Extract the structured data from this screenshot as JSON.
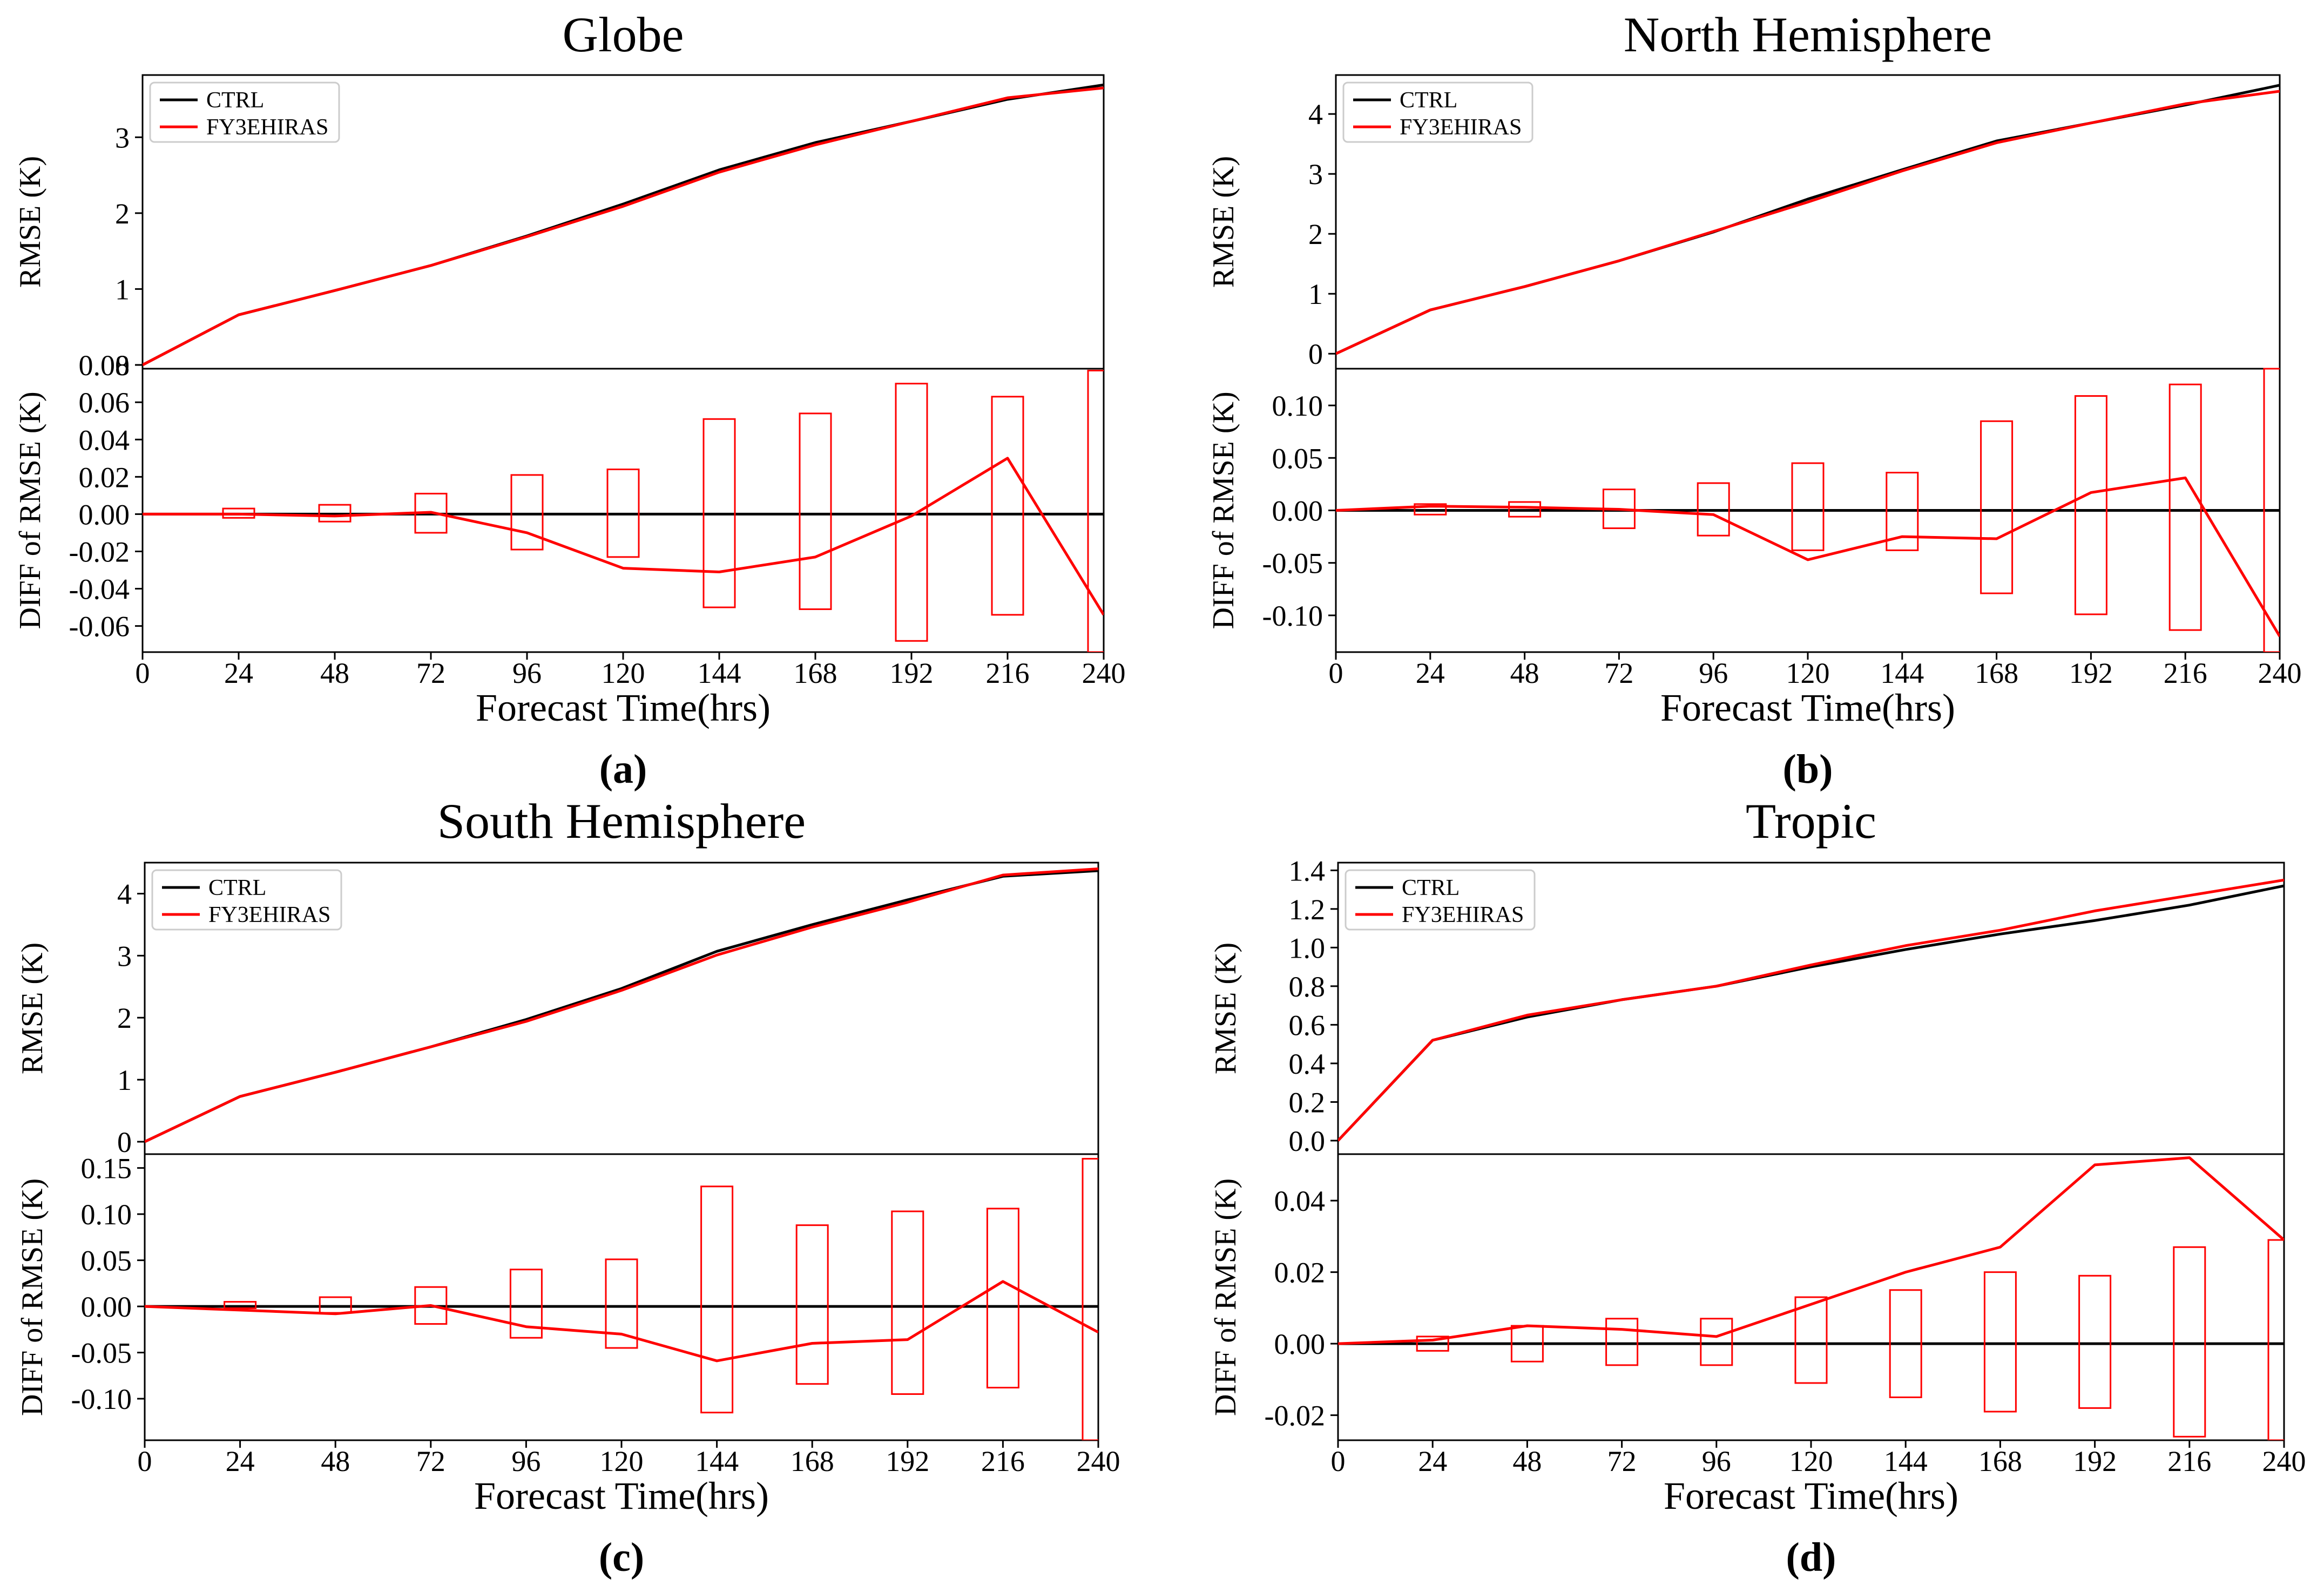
{
  "colors": {
    "ctrl": "#000000",
    "exp": "#ff0000",
    "axis": "#000000"
  },
  "chart_data": [
    {
      "type": "line",
      "panel_label": "(a)",
      "title": "Globe",
      "xlabel": "Forecast Time(hrs)",
      "x": [
        0,
        24,
        48,
        72,
        96,
        120,
        144,
        168,
        192,
        216,
        240
      ],
      "xticks": [
        "0",
        "24",
        "48",
        "72",
        "96",
        "120",
        "144",
        "168",
        "192",
        "216",
        "240"
      ],
      "top": {
        "ylabel": "RMSE (K)",
        "ylim": [
          -0.05,
          3.82
        ],
        "yticks": [
          0,
          1,
          2,
          3
        ],
        "ytick_labels": [
          "0",
          "1",
          "2",
          "3"
        ],
        "legend": {
          "position": "top-left",
          "entries": [
            "CTRL",
            "FY3EHIRAS"
          ]
        },
        "series": [
          {
            "name": "CTRL",
            "values": [
              0,
              0.66,
              0.98,
              1.31,
              1.7,
              2.12,
              2.57,
              2.93,
              3.21,
              3.5,
              3.69
            ]
          },
          {
            "name": "FY3EHIRAS",
            "values": [
              0,
              0.66,
              0.98,
              1.31,
              1.69,
              2.09,
              2.54,
              2.9,
              3.21,
              3.52,
              3.65
            ]
          }
        ]
      },
      "bottom": {
        "ylabel": "DIFF of RMSE (K)",
        "ylim": [
          -0.074,
          0.078
        ],
        "yticks": [
          -0.06,
          -0.04,
          -0.02,
          0.0,
          0.02,
          0.04,
          0.06,
          0.08
        ],
        "ytick_labels": [
          "-0.06",
          "-0.04",
          "-0.02",
          "0.00",
          "0.02",
          "0.04",
          "0.06",
          "0.08"
        ],
        "zero_line": true,
        "series": [
          {
            "name": "DIFF",
            "values": [
              0.0,
              0.0,
              -0.001,
              0.001,
              -0.01,
              -0.029,
              -0.031,
              -0.023,
              -0.001,
              0.03,
              -0.054
            ]
          }
        ],
        "intervals": [
          {
            "x": 24,
            "low": -0.002,
            "high": 0.003
          },
          {
            "x": 48,
            "low": -0.004,
            "high": 0.005
          },
          {
            "x": 72,
            "low": -0.01,
            "high": 0.011
          },
          {
            "x": 96,
            "low": -0.019,
            "high": 0.021
          },
          {
            "x": 120,
            "low": -0.023,
            "high": 0.024
          },
          {
            "x": 144,
            "low": -0.05,
            "high": 0.051
          },
          {
            "x": 168,
            "low": -0.051,
            "high": 0.054
          },
          {
            "x": 192,
            "low": -0.068,
            "high": 0.07
          },
          {
            "x": 216,
            "low": -0.054,
            "high": 0.063
          },
          {
            "x": 240,
            "low": -0.074,
            "high": 0.077
          }
        ]
      }
    },
    {
      "type": "line",
      "panel_label": "(b)",
      "title": "North Hemisphere",
      "xlabel": "Forecast Time(hrs)",
      "x": [
        0,
        24,
        48,
        72,
        96,
        120,
        144,
        168,
        192,
        216,
        240
      ],
      "xticks": [
        "0",
        "24",
        "48",
        "72",
        "96",
        "120",
        "144",
        "168",
        "192",
        "216",
        "240"
      ],
      "top": {
        "ylabel": "RMSE (K)",
        "ylim": [
          -0.25,
          4.65
        ],
        "yticks": [
          0,
          1,
          2,
          3,
          4
        ],
        "ytick_labels": [
          "0",
          "1",
          "2",
          "3",
          "4"
        ],
        "legend": {
          "position": "top-left",
          "entries": [
            "CTRL",
            "FY3EHIRAS"
          ]
        },
        "series": [
          {
            "name": "CTRL",
            "values": [
              0,
              0.73,
              1.12,
              1.55,
              2.03,
              2.58,
              3.07,
              3.55,
              3.85,
              4.15,
              4.48
            ]
          },
          {
            "name": "FY3EHIRAS",
            "values": [
              0,
              0.73,
              1.12,
              1.55,
              2.04,
              2.53,
              3.05,
              3.52,
              3.85,
              4.17,
              4.38
            ]
          }
        ]
      },
      "bottom": {
        "ylabel": "DIFF of RMSE (K)",
        "ylim": [
          -0.135,
          0.135
        ],
        "yticks": [
          -0.1,
          -0.05,
          0.0,
          0.05,
          0.1
        ],
        "ytick_labels": [
          "-0.10",
          "-0.05",
          "0.00",
          "0.05",
          "0.10"
        ],
        "zero_line": true,
        "series": [
          {
            "name": "DIFF",
            "values": [
              0.0,
              0.004,
              0.003,
              0.001,
              -0.004,
              -0.047,
              -0.025,
              -0.027,
              0.017,
              0.031,
              -0.12
            ]
          }
        ],
        "intervals": [
          {
            "x": 24,
            "low": -0.004,
            "high": 0.006
          },
          {
            "x": 48,
            "low": -0.006,
            "high": 0.008
          },
          {
            "x": 72,
            "low": -0.017,
            "high": 0.02
          },
          {
            "x": 96,
            "low": -0.024,
            "high": 0.026
          },
          {
            "x": 120,
            "low": -0.038,
            "high": 0.045
          },
          {
            "x": 144,
            "low": -0.038,
            "high": 0.036
          },
          {
            "x": 168,
            "low": -0.079,
            "high": 0.085
          },
          {
            "x": 192,
            "low": -0.099,
            "high": 0.109
          },
          {
            "x": 216,
            "low": -0.114,
            "high": 0.12
          },
          {
            "x": 240,
            "low": -0.135,
            "high": 0.135
          }
        ]
      }
    },
    {
      "type": "line",
      "panel_label": "(c)",
      "title": "South Hemisphere",
      "xlabel": "Forecast Time(hrs)",
      "x": [
        0,
        24,
        48,
        72,
        96,
        120,
        144,
        168,
        192,
        216,
        240
      ],
      "xticks": [
        "0",
        "24",
        "48",
        "72",
        "96",
        "120",
        "144",
        "168",
        "192",
        "216",
        "240"
      ],
      "top": {
        "ylabel": "RMSE (K)",
        "ylim": [
          -0.2,
          4.5
        ],
        "yticks": [
          0,
          1,
          2,
          3,
          4
        ],
        "ytick_labels": [
          "0",
          "1",
          "2",
          "3",
          "4"
        ],
        "legend": {
          "position": "top-left",
          "entries": [
            "CTRL",
            "FY3EHIRAS"
          ]
        },
        "series": [
          {
            "name": "CTRL",
            "values": [
              0,
              0.73,
              1.12,
              1.53,
              1.97,
              2.47,
              3.07,
              3.5,
              3.9,
              4.28,
              4.37
            ]
          },
          {
            "name": "FY3EHIRAS",
            "values": [
              0,
              0.73,
              1.12,
              1.53,
              1.94,
              2.44,
              3.01,
              3.46,
              3.86,
              4.3,
              4.4
            ]
          }
        ]
      },
      "bottom": {
        "ylabel": "DIFF of RMSE (K)",
        "ylim": [
          -0.145,
          0.165
        ],
        "yticks": [
          -0.1,
          -0.05,
          0.0,
          0.05,
          0.1,
          0.15
        ],
        "ytick_labels": [
          "-0.10",
          "-0.05",
          "0.00",
          "0.05",
          "0.10",
          "0.15"
        ],
        "zero_line": true,
        "series": [
          {
            "name": "DIFF",
            "values": [
              0.0,
              -0.004,
              -0.008,
              0.001,
              -0.022,
              -0.03,
              -0.059,
              -0.04,
              -0.036,
              0.027,
              -0.028
            ]
          }
        ],
        "intervals": [
          {
            "x": 24,
            "low": -0.002,
            "high": 0.005
          },
          {
            "x": 48,
            "low": -0.007,
            "high": 0.01
          },
          {
            "x": 72,
            "low": -0.019,
            "high": 0.021
          },
          {
            "x": 96,
            "low": -0.034,
            "high": 0.04
          },
          {
            "x": 120,
            "low": -0.045,
            "high": 0.051
          },
          {
            "x": 144,
            "low": -0.115,
            "high": 0.13
          },
          {
            "x": 168,
            "low": -0.084,
            "high": 0.088
          },
          {
            "x": 192,
            "low": -0.095,
            "high": 0.103
          },
          {
            "x": 216,
            "low": -0.088,
            "high": 0.106
          },
          {
            "x": 240,
            "low": -0.145,
            "high": 0.16
          }
        ]
      }
    },
    {
      "type": "line",
      "panel_label": "(d)",
      "title": "Tropic",
      "xlabel": "Forecast Time(hrs)",
      "x": [
        0,
        24,
        48,
        72,
        96,
        120,
        144,
        168,
        192,
        216,
        240
      ],
      "xticks": [
        "0",
        "24",
        "48",
        "72",
        "96",
        "120",
        "144",
        "168",
        "192",
        "216",
        "240"
      ],
      "top": {
        "ylabel": "RMSE (K)",
        "ylim": [
          -0.07,
          1.44
        ],
        "yticks": [
          0.0,
          0.2,
          0.4,
          0.6,
          0.8,
          1.0,
          1.2,
          1.4
        ],
        "ytick_labels": [
          "0.0",
          "0.2",
          "0.4",
          "0.6",
          "0.8",
          "1.0",
          "1.2",
          "1.4"
        ],
        "legend": {
          "position": "top-left",
          "entries": [
            "CTRL",
            "FY3EHIRAS"
          ]
        },
        "series": [
          {
            "name": "CTRL",
            "values": [
              0,
              0.52,
              0.64,
              0.73,
              0.8,
              0.9,
              0.99,
              1.07,
              1.14,
              1.22,
              1.32
            ]
          },
          {
            "name": "FY3EHIRAS",
            "values": [
              0,
              0.52,
              0.65,
              0.73,
              0.8,
              0.91,
              1.01,
              1.09,
              1.19,
              1.27,
              1.35
            ]
          }
        ]
      },
      "bottom": {
        "ylabel": "DIFF of RMSE (K)",
        "ylim": [
          -0.027,
          0.053
        ],
        "yticks": [
          -0.02,
          0.0,
          0.02,
          0.04
        ],
        "ytick_labels": [
          "-0.02",
          "0.00",
          "0.02",
          "0.04"
        ],
        "zero_line": true,
        "series": [
          {
            "name": "DIFF",
            "values": [
              0.0,
              0.001,
              0.005,
              0.004,
              0.002,
              0.011,
              0.02,
              0.027,
              0.05,
              0.052,
              0.029
            ]
          }
        ],
        "intervals": [
          {
            "x": 24,
            "low": -0.002,
            "high": 0.002
          },
          {
            "x": 48,
            "low": -0.005,
            "high": 0.005
          },
          {
            "x": 72,
            "low": -0.006,
            "high": 0.007
          },
          {
            "x": 96,
            "low": -0.006,
            "high": 0.007
          },
          {
            "x": 120,
            "low": -0.011,
            "high": 0.013
          },
          {
            "x": 144,
            "low": -0.015,
            "high": 0.015
          },
          {
            "x": 168,
            "low": -0.019,
            "high": 0.02
          },
          {
            "x": 192,
            "low": -0.018,
            "high": 0.019
          },
          {
            "x": 216,
            "low": -0.026,
            "high": 0.027
          },
          {
            "x": 240,
            "low": -0.027,
            "high": 0.029
          }
        ]
      }
    }
  ]
}
